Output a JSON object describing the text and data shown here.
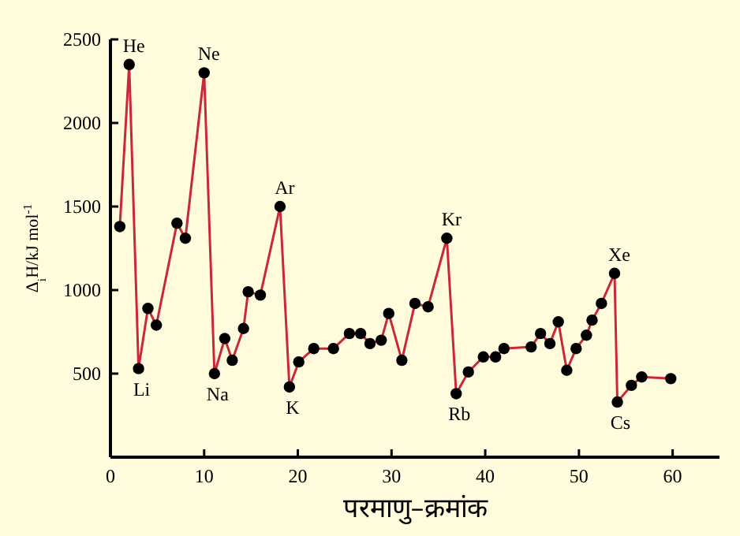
{
  "chart_data": {
    "type": "line",
    "xlabel": "परमाणु–क्रमांक",
    "ylabel": "Δ$_{i}$H/kJ mol$^{-1}$",
    "xlim": [
      0,
      65
    ],
    "xticks": [
      0,
      10,
      20,
      30,
      40,
      50,
      60
    ],
    "ylim": [
      0,
      2500
    ],
    "yticks": [
      500,
      1000,
      1500,
      2000,
      2500
    ],
    "grid": false,
    "marker": "circle",
    "line_style": "solid",
    "series": [
      {
        "color": "#c8283a",
        "x": [
          1,
          2,
          3,
          4,
          4.9,
          7.1,
          8,
          10,
          11.1,
          12.2,
          13,
          14.2,
          14.7,
          16,
          18.1,
          19.1,
          20.1,
          21.7,
          23.8,
          25.5,
          26.7,
          27.7,
          28.9,
          29.7,
          31.1,
          32.5,
          33.9,
          35.9,
          36.9,
          38.2,
          39.8,
          41.1,
          42,
          44.9,
          45.9,
          46.9,
          47.8,
          48.7,
          49.7,
          50.8,
          51.4,
          52.4,
          53.8,
          54.1,
          55.6,
          56.7,
          59.8
        ],
        "values": [
          1380,
          2350,
          530,
          890,
          790,
          1400,
          1310,
          2300,
          500,
          710,
          580,
          770,
          990,
          970,
          1500,
          420,
          570,
          650,
          650,
          740,
          740,
          680,
          700,
          860,
          580,
          920,
          900,
          1310,
          380,
          510,
          600,
          600,
          650,
          660,
          740,
          680,
          810,
          520,
          650,
          730,
          820,
          920,
          1100,
          330,
          430,
          480,
          470
        ]
      }
    ],
    "annotations": [
      {
        "text": "He",
        "x": 2,
        "y": 2350
      },
      {
        "text": "Li",
        "x": 3,
        "y": 530
      },
      {
        "text": "Ne",
        "x": 10,
        "y": 2300
      },
      {
        "text": "Na",
        "x": 11.1,
        "y": 500
      },
      {
        "text": "Ar",
        "x": 18.1,
        "y": 1500
      },
      {
        "text": "K",
        "x": 19.1,
        "y": 420
      },
      {
        "text": "Kr",
        "x": 35.9,
        "y": 1310
      },
      {
        "text": "Rb",
        "x": 36.9,
        "y": 380
      },
      {
        "text": "Xe",
        "x": 53.8,
        "y": 1100
      },
      {
        "text": "Cs",
        "x": 54.1,
        "y": 330
      }
    ]
  }
}
